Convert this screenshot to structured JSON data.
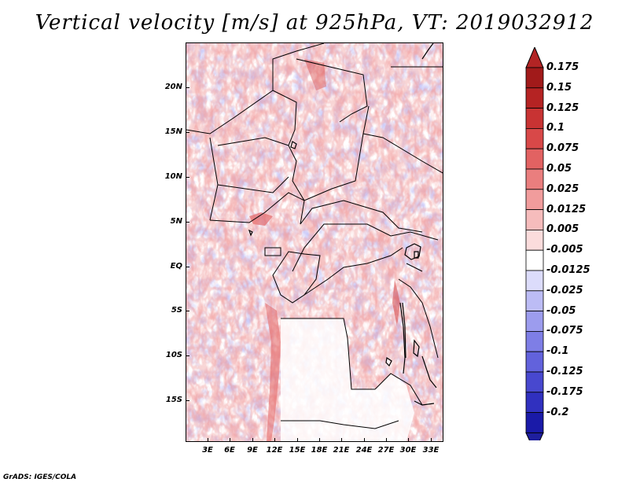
{
  "title": "Vertical velocity [m/s] at 925hPa, VT: 2019032912",
  "footer": "GrADS: IGES/COLA",
  "map": {
    "region": "Central Africa",
    "lat_labels": [
      "20N",
      "15N",
      "10N",
      "5N",
      "EQ",
      "5S",
      "10S",
      "15S"
    ],
    "lon_labels": [
      "3E",
      "6E",
      "9E",
      "12E",
      "15E",
      "18E",
      "21E",
      "24E",
      "27E",
      "30E",
      "33E"
    ]
  },
  "colorbar": {
    "labels": [
      "0.175",
      "0.15",
      "0.125",
      "0.1",
      "0.075",
      "0.05",
      "0.025",
      "0.0125",
      "0.005",
      "-0.005",
      "-0.0125",
      "-0.025",
      "-0.05",
      "-0.075",
      "-0.1",
      "-0.125",
      "-0.175",
      "-0.2"
    ],
    "colors": [
      "#a11a1a",
      "#b52323",
      "#c83333",
      "#d84848",
      "#e26262",
      "#ea7e7e",
      "#f19c9c",
      "#f6bcbc",
      "#fbdcdc",
      "#ffffff",
      "#dcdcfb",
      "#bcbcf5",
      "#9c9cee",
      "#7e7ee6",
      "#6262dc",
      "#4848cf",
      "#3030bf",
      "#1a1aa8"
    ],
    "top_color": "#b22424",
    "bottom_color": "#1e1e9e"
  },
  "chart_data": {
    "type": "heatmap",
    "title": "Vertical velocity [m/s] at 925hPa, VT: 2019032912",
    "xlabel": "",
    "ylabel": "",
    "lon_ticks_deg_east": [
      3,
      6,
      9,
      12,
      15,
      18,
      21,
      24,
      27,
      30,
      33
    ],
    "lat_ticks_deg": [
      20,
      15,
      10,
      5,
      0,
      -5,
      -10,
      -15
    ],
    "colorbar_levels": [
      0.175,
      0.15,
      0.125,
      0.1,
      0.075,
      0.05,
      0.025,
      0.0125,
      0.005,
      -0.005,
      -0.0125,
      -0.025,
      -0.05,
      -0.075,
      -0.1,
      -0.125,
      -0.175,
      -0.2
    ],
    "units": "m/s"
  }
}
